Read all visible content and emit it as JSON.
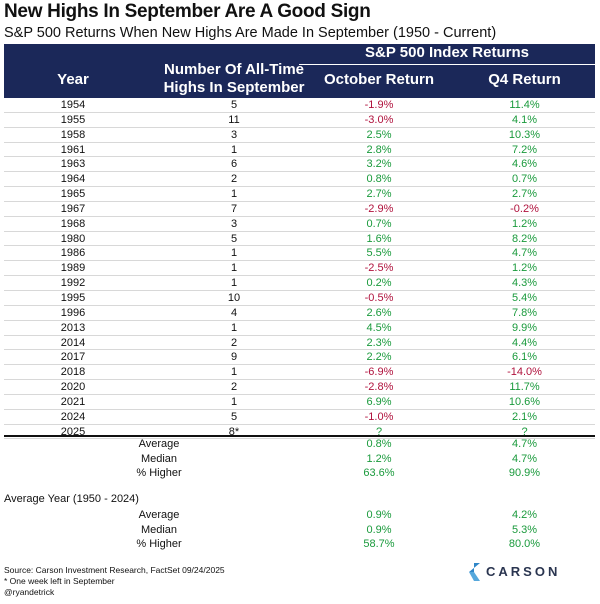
{
  "title": "New Highs In September Are A Good Sign",
  "subtitle": "S&P 500 Returns When New Highs Are Made In September (1950 - Current)",
  "header": {
    "group": "S&P 500 Index Returns",
    "year": "Year",
    "num_highs": "Number Of All-Time Highs In September",
    "october": "October Return",
    "q4": "Q4 Return"
  },
  "colors": {
    "header_bg": "#1b2859",
    "positive": "#1a9a3c",
    "negative": "#b0123d"
  },
  "chart_data": {
    "type": "table",
    "columns": [
      "Year",
      "Number Of All-Time Highs In September",
      "October Return",
      "Q4 Return"
    ],
    "rows": [
      {
        "year": "1954",
        "highs": "5",
        "oct": "-1.9%",
        "q4": "11.4%"
      },
      {
        "year": "1955",
        "highs": "11",
        "oct": "-3.0%",
        "q4": "4.1%"
      },
      {
        "year": "1958",
        "highs": "3",
        "oct": "2.5%",
        "q4": "10.3%"
      },
      {
        "year": "1961",
        "highs": "1",
        "oct": "2.8%",
        "q4": "7.2%"
      },
      {
        "year": "1963",
        "highs": "6",
        "oct": "3.2%",
        "q4": "4.6%"
      },
      {
        "year": "1964",
        "highs": "2",
        "oct": "0.8%",
        "q4": "0.7%"
      },
      {
        "year": "1965",
        "highs": "1",
        "oct": "2.7%",
        "q4": "2.7%"
      },
      {
        "year": "1967",
        "highs": "7",
        "oct": "-2.9%",
        "q4": "-0.2%"
      },
      {
        "year": "1968",
        "highs": "3",
        "oct": "0.7%",
        "q4": "1.2%"
      },
      {
        "year": "1980",
        "highs": "5",
        "oct": "1.6%",
        "q4": "8.2%"
      },
      {
        "year": "1986",
        "highs": "1",
        "oct": "5.5%",
        "q4": "4.7%"
      },
      {
        "year": "1989",
        "highs": "1",
        "oct": "-2.5%",
        "q4": "1.2%"
      },
      {
        "year": "1992",
        "highs": "1",
        "oct": "0.2%",
        "q4": "4.3%"
      },
      {
        "year": "1995",
        "highs": "10",
        "oct": "-0.5%",
        "q4": "5.4%"
      },
      {
        "year": "1996",
        "highs": "4",
        "oct": "2.6%",
        "q4": "7.8%"
      },
      {
        "year": "2013",
        "highs": "1",
        "oct": "4.5%",
        "q4": "9.9%"
      },
      {
        "year": "2014",
        "highs": "2",
        "oct": "2.3%",
        "q4": "4.4%"
      },
      {
        "year": "2017",
        "highs": "9",
        "oct": "2.2%",
        "q4": "6.1%"
      },
      {
        "year": "2018",
        "highs": "1",
        "oct": "-6.9%",
        "q4": "-14.0%"
      },
      {
        "year": "2020",
        "highs": "2",
        "oct": "-2.8%",
        "q4": "11.7%"
      },
      {
        "year": "2021",
        "highs": "1",
        "oct": "6.9%",
        "q4": "10.6%"
      },
      {
        "year": "2024",
        "highs": "5",
        "oct": "-1.0%",
        "q4": "2.1%"
      },
      {
        "year": "2025",
        "highs": "8*",
        "oct": "?",
        "q4": "?"
      }
    ],
    "summary": [
      {
        "label": "Average",
        "oct": "0.8%",
        "q4": "4.7%"
      },
      {
        "label": "Median",
        "oct": "1.2%",
        "q4": "4.7%"
      },
      {
        "label": "% Higher",
        "oct": "63.6%",
        "q4": "90.9%"
      }
    ],
    "average_year_label": "Average Year (1950 - 2024)",
    "average_year": [
      {
        "label": "Average",
        "oct": "0.9%",
        "q4": "4.2%"
      },
      {
        "label": "Median",
        "oct": "0.9%",
        "q4": "5.3%"
      },
      {
        "label": "% Higher",
        "oct": "58.7%",
        "q4": "80.0%"
      }
    ]
  },
  "footer": {
    "source": "Source: Carson Investment Research, FactSet 09/24/2025",
    "note": "* One week left in September",
    "handle": "@ryandetrick"
  },
  "logo": {
    "text": "CARSON",
    "icon": "carson-chevron-icon"
  }
}
